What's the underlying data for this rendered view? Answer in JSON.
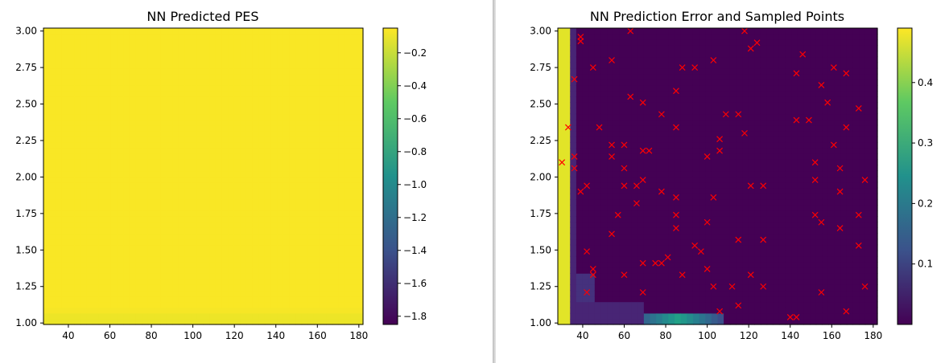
{
  "chart_data": [
    {
      "type": "heatmap",
      "title": "NN Predicted PES",
      "xlabel": "",
      "ylabel": "",
      "xlim": [
        28,
        182
      ],
      "ylim": [
        0.99,
        3.02
      ],
      "x_ticks": [
        40,
        60,
        80,
        100,
        120,
        140,
        160,
        180
      ],
      "y_ticks": [
        1.0,
        1.25,
        1.5,
        1.75,
        2.0,
        2.25,
        2.5,
        2.75,
        3.0
      ],
      "colormap": "viridis",
      "colorbar": {
        "min": -1.85,
        "max": -0.05,
        "ticks": [
          -0.2,
          -0.4,
          -0.6,
          -0.8,
          -1.0,
          -1.2,
          -1.4,
          -1.6,
          -1.8
        ]
      },
      "grid": false
    },
    {
      "type": "heatmap",
      "title": "NN Prediction Error and Sampled Points",
      "xlabel": "",
      "ylabel": "",
      "xlim": [
        28,
        182
      ],
      "ylim": [
        0.99,
        3.02
      ],
      "x_ticks": [
        40,
        60,
        80,
        100,
        120,
        140,
        160,
        180
      ],
      "y_ticks": [
        1.0,
        1.25,
        1.5,
        1.75,
        2.0,
        2.25,
        2.5,
        2.75,
        3.0
      ],
      "colormap": "viridis",
      "colorbar": {
        "min": 0.0,
        "max": 0.49,
        "ticks": [
          0.1,
          0.2,
          0.3,
          0.4
        ]
      },
      "grid": false,
      "marker_color": "#ff0000",
      "sampled_points": [
        [
          30,
          2.1
        ],
        [
          33,
          2.34
        ],
        [
          36,
          2.67
        ],
        [
          36,
          2.14
        ],
        [
          36,
          2.06
        ],
        [
          39,
          2.96
        ],
        [
          39,
          2.93
        ],
        [
          39,
          1.9
        ],
        [
          42,
          1.94
        ],
        [
          42,
          1.49
        ],
        [
          42,
          1.21
        ],
        [
          45,
          2.75
        ],
        [
          45,
          1.37
        ],
        [
          45,
          1.33
        ],
        [
          48,
          2.34
        ],
        [
          54,
          2.8
        ],
        [
          54,
          2.22
        ],
        [
          54,
          2.14
        ],
        [
          54,
          1.61
        ],
        [
          57,
          1.74
        ],
        [
          60,
          2.22
        ],
        [
          60,
          2.06
        ],
        [
          60,
          1.94
        ],
        [
          60,
          1.33
        ],
        [
          63,
          3.0
        ],
        [
          63,
          2.55
        ],
        [
          66,
          1.94
        ],
        [
          66,
          1.82
        ],
        [
          69,
          2.51
        ],
        [
          69,
          2.18
        ],
        [
          69,
          1.98
        ],
        [
          69,
          1.41
        ],
        [
          69,
          1.21
        ],
        [
          72,
          2.18
        ],
        [
          75,
          1.41
        ],
        [
          78,
          2.43
        ],
        [
          78,
          1.9
        ],
        [
          78,
          1.41
        ],
        [
          81,
          1.45
        ],
        [
          85,
          2.59
        ],
        [
          85,
          2.34
        ],
        [
          85,
          1.86
        ],
        [
          85,
          1.74
        ],
        [
          85,
          1.65
        ],
        [
          88,
          2.75
        ],
        [
          88,
          1.33
        ],
        [
          94,
          2.75
        ],
        [
          94,
          1.53
        ],
        [
          97,
          1.49
        ],
        [
          100,
          2.14
        ],
        [
          100,
          1.69
        ],
        [
          100,
          1.37
        ],
        [
          103,
          2.8
        ],
        [
          103,
          1.86
        ],
        [
          103,
          1.25
        ],
        [
          106,
          2.26
        ],
        [
          106,
          2.18
        ],
        [
          106,
          1.08
        ],
        [
          109,
          2.43
        ],
        [
          112,
          1.25
        ],
        [
          115,
          2.43
        ],
        [
          115,
          1.57
        ],
        [
          115,
          1.12
        ],
        [
          118,
          3.0
        ],
        [
          118,
          2.3
        ],
        [
          121,
          2.88
        ],
        [
          121,
          1.94
        ],
        [
          121,
          1.33
        ],
        [
          124,
          2.92
        ],
        [
          127,
          1.94
        ],
        [
          127,
          1.57
        ],
        [
          127,
          1.25
        ],
        [
          140,
          1.04
        ],
        [
          143,
          2.71
        ],
        [
          143,
          2.39
        ],
        [
          143,
          1.04
        ],
        [
          146,
          2.84
        ],
        [
          149,
          2.39
        ],
        [
          152,
          2.1
        ],
        [
          152,
          1.98
        ],
        [
          152,
          1.74
        ],
        [
          155,
          2.63
        ],
        [
          155,
          1.69
        ],
        [
          155,
          1.21
        ],
        [
          158,
          2.51
        ],
        [
          161,
          2.75
        ],
        [
          161,
          2.22
        ],
        [
          164,
          2.06
        ],
        [
          164,
          1.9
        ],
        [
          164,
          1.65
        ],
        [
          167,
          2.71
        ],
        [
          167,
          2.34
        ],
        [
          167,
          1.08
        ],
        [
          173,
          2.47
        ],
        [
          173,
          1.74
        ],
        [
          173,
          1.53
        ],
        [
          176,
          1.98
        ],
        [
          176,
          1.25
        ]
      ]
    }
  ]
}
